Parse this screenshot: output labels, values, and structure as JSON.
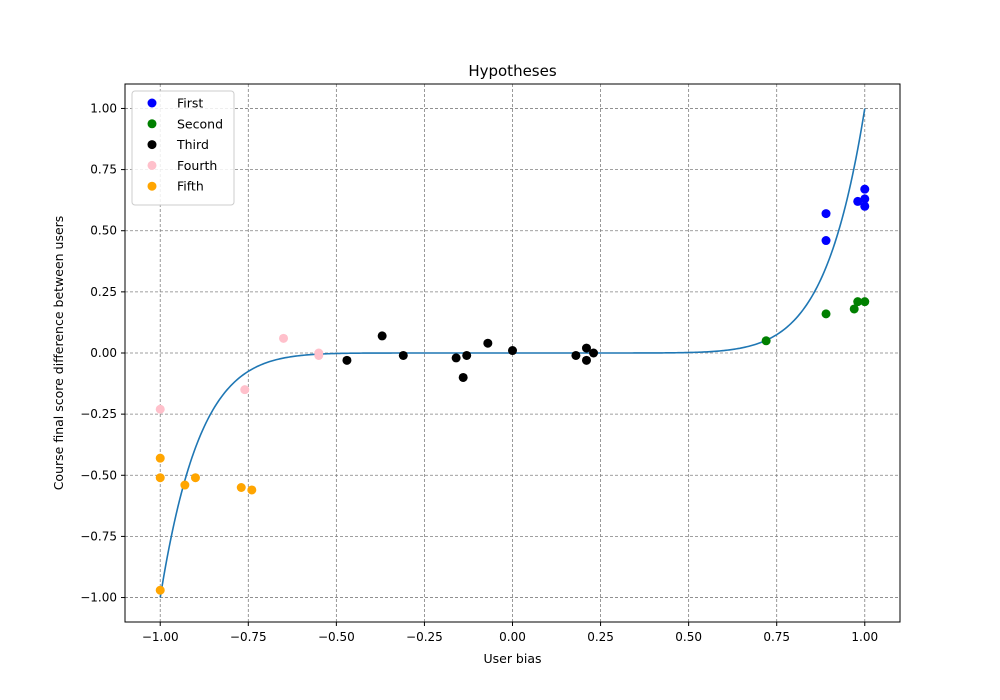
{
  "chart_data": {
    "type": "scatter",
    "title": "Hypotheses",
    "xlabel": "User bias",
    "ylabel": "Course final score difference between users",
    "xlim": [
      -1.1,
      1.1
    ],
    "ylim": [
      -1.1,
      1.1
    ],
    "xticks": [
      -1.0,
      -0.75,
      -0.5,
      -0.25,
      0.0,
      0.25,
      0.5,
      0.75,
      1.0
    ],
    "yticks": [
      -1.0,
      -0.75,
      -0.5,
      -0.25,
      0.0,
      0.25,
      0.5,
      0.75,
      1.0
    ],
    "xtick_labels": [
      "−1.00",
      "−0.75",
      "−0.50",
      "−0.25",
      "0.00",
      "0.25",
      "0.50",
      "0.75",
      "1.00"
    ],
    "ytick_labels": [
      "−1.00",
      "−0.75",
      "−0.50",
      "−0.25",
      "0.00",
      "0.25",
      "0.50",
      "0.75",
      "1.00"
    ],
    "grid": true,
    "legend_position": "top-left",
    "series": [
      {
        "name": "First",
        "color": "#0000ff",
        "points": [
          [
            0.89,
            0.57
          ],
          [
            0.89,
            0.46
          ],
          [
            0.98,
            0.62
          ],
          [
            1.0,
            0.67
          ],
          [
            1.0,
            0.63
          ],
          [
            1.0,
            0.6
          ]
        ]
      },
      {
        "name": "Second",
        "color": "#008000",
        "points": [
          [
            0.72,
            0.05
          ],
          [
            0.89,
            0.16
          ],
          [
            0.97,
            0.18
          ],
          [
            0.98,
            0.21
          ],
          [
            1.0,
            0.21
          ]
        ]
      },
      {
        "name": "Third",
        "color": "#000000",
        "points": [
          [
            -0.47,
            -0.03
          ],
          [
            -0.37,
            0.07
          ],
          [
            -0.31,
            -0.01
          ],
          [
            -0.16,
            -0.02
          ],
          [
            -0.14,
            -0.1
          ],
          [
            -0.13,
            -0.01
          ],
          [
            -0.07,
            0.04
          ],
          [
            0.0,
            0.01
          ],
          [
            0.18,
            -0.01
          ],
          [
            0.21,
            0.02
          ],
          [
            0.21,
            -0.03
          ],
          [
            0.23,
            0.0
          ]
        ]
      },
      {
        "name": "Fourth",
        "color": "#ffc0cb",
        "points": [
          [
            -1.0,
            -0.23
          ],
          [
            -0.76,
            -0.15
          ],
          [
            -0.65,
            0.06
          ],
          [
            -0.55,
            0.0
          ],
          [
            -0.55,
            -0.01
          ]
        ]
      },
      {
        "name": "Fifth",
        "color": "#ffa500",
        "points": [
          [
            -1.0,
            -0.43
          ],
          [
            -1.0,
            -0.51
          ],
          [
            -0.93,
            -0.54
          ],
          [
            -0.9,
            -0.51
          ],
          [
            -0.77,
            -0.55
          ],
          [
            -0.74,
            -0.56
          ],
          [
            -1.0,
            -0.97
          ]
        ]
      }
    ],
    "fit_curve": {
      "type": "line",
      "color": "#1f77b4",
      "function": "y = x^9",
      "x_range": [
        -1.0,
        1.0
      ]
    }
  }
}
